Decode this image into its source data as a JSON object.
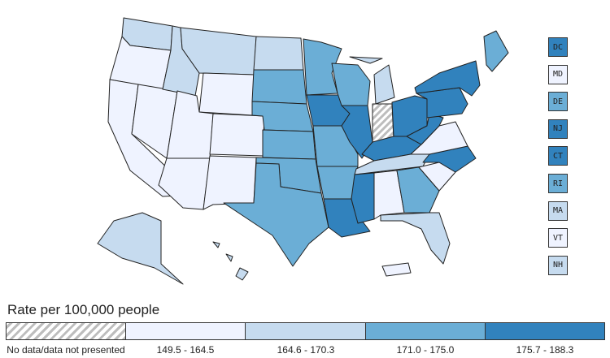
{
  "legend": {
    "title": "Rate per 100,000 people",
    "bins": [
      {
        "label": "No data/data not presented",
        "color": "hatch"
      },
      {
        "label": "149.5 - 164.5",
        "color": "#eff3ff"
      },
      {
        "label": "164.6 - 170.3",
        "color": "#c6dbef"
      },
      {
        "label": "171.0 - 175.0",
        "color": "#6baed6"
      },
      {
        "label": "175.7 - 188.3",
        "color": "#3182bd"
      }
    ]
  },
  "small_states": [
    {
      "abbr": "DC",
      "bin": 4
    },
    {
      "abbr": "MD",
      "bin": 1
    },
    {
      "abbr": "DE",
      "bin": 3
    },
    {
      "abbr": "NJ",
      "bin": 4
    },
    {
      "abbr": "CT",
      "bin": 4
    },
    {
      "abbr": "RI",
      "bin": 3
    },
    {
      "abbr": "MA",
      "bin": 2
    },
    {
      "abbr": "VT",
      "bin": 1
    },
    {
      "abbr": "NH",
      "bin": 2
    }
  ],
  "state_bins": {
    "WA": 2,
    "OR": 1,
    "CA": 1,
    "NV": 1,
    "ID": 2,
    "MT": 2,
    "WY": 1,
    "UT": 1,
    "AZ": 1,
    "CO": 1,
    "NM": 1,
    "ND": 2,
    "SD": 3,
    "NE": 3,
    "KS": 3,
    "OK": 3,
    "TX": 3,
    "MN": 3,
    "IA": 4,
    "MO": 3,
    "AR": 3,
    "LA": 4,
    "WI": 3,
    "IL": 4,
    "MI": 2,
    "IN": 0,
    "OH": 4,
    "KY": 4,
    "TN": 2,
    "MS": 4,
    "AL": 1,
    "GA": 3,
    "FL": 2,
    "SC": 1,
    "NC": 4,
    "VA": 1,
    "WV": 4,
    "PA": 4,
    "NY": 4,
    "ME": 3,
    "AK": 2,
    "HI": 2,
    "PR": 1
  }
}
